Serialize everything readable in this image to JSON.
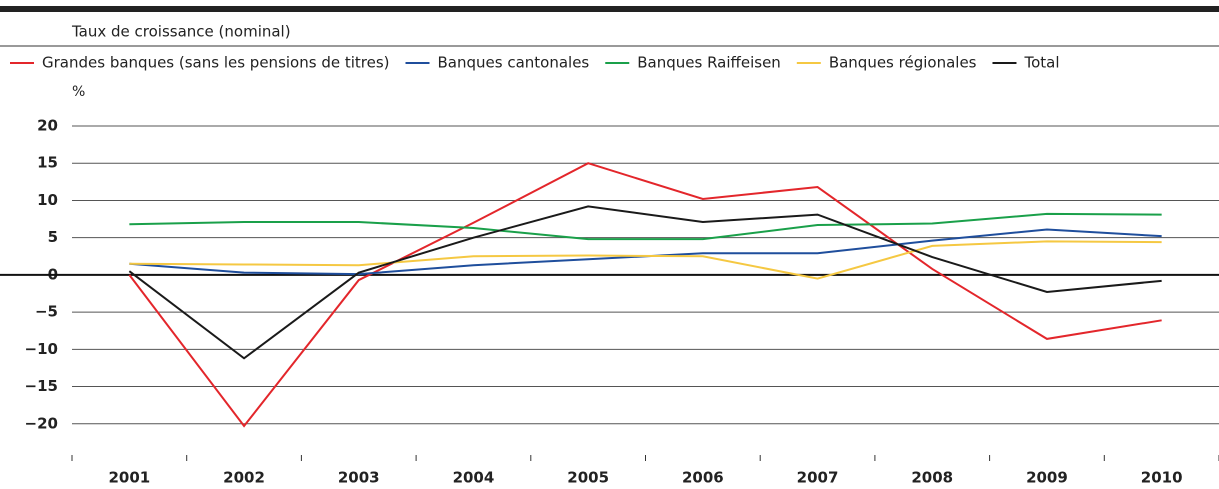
{
  "chart_data": {
    "type": "line",
    "subtitle": "Taux de croissance (nominal)",
    "y_unit": "%",
    "categories": [
      "2001",
      "2002",
      "2003",
      "2004",
      "2005",
      "2006",
      "2007",
      "2008",
      "2009",
      "2010"
    ],
    "series": [
      {
        "name": "Grandes banques (sans les pensions de titres)",
        "color": "#e3262b",
        "values": [
          0,
          -20.3,
          -0.7,
          7,
          15,
          10.2,
          11.8,
          0.8,
          -8.6,
          -6.1
        ]
      },
      {
        "name": "Banques cantonales",
        "color": "#1f4e9c",
        "values": [
          1.5,
          0.3,
          0.1,
          1.3,
          2.1,
          2.9,
          2.9,
          4.6,
          6.1,
          5.2
        ]
      },
      {
        "name": "Banques Raiffeisen",
        "color": "#1aa04a",
        "values": [
          6.8,
          7.1,
          7.1,
          6.3,
          4.8,
          4.8,
          6.7,
          6.9,
          8.2,
          8.1
        ]
      },
      {
        "name": "Banques régionales",
        "color": "#f5c842",
        "values": [
          1.5,
          1.4,
          1.3,
          2.5,
          2.6,
          2.5,
          -0.5,
          3.9,
          4.5,
          4.4
        ]
      },
      {
        "name": "Total",
        "color": "#1a1a1a",
        "values": [
          0.5,
          -11.2,
          0.3,
          5,
          9.2,
          7.1,
          8.1,
          2.4,
          -2.3,
          -0.8
        ]
      }
    ],
    "ylim": [
      -25,
      20
    ],
    "yticks": [
      {
        "value": -20,
        "label": "−20"
      },
      {
        "value": -15,
        "label": "−15"
      },
      {
        "value": -10,
        "label": "−10"
      },
      {
        "value": -5,
        "label": "−5"
      },
      0,
      5,
      10,
      15,
      20
    ],
    "grid": true
  }
}
